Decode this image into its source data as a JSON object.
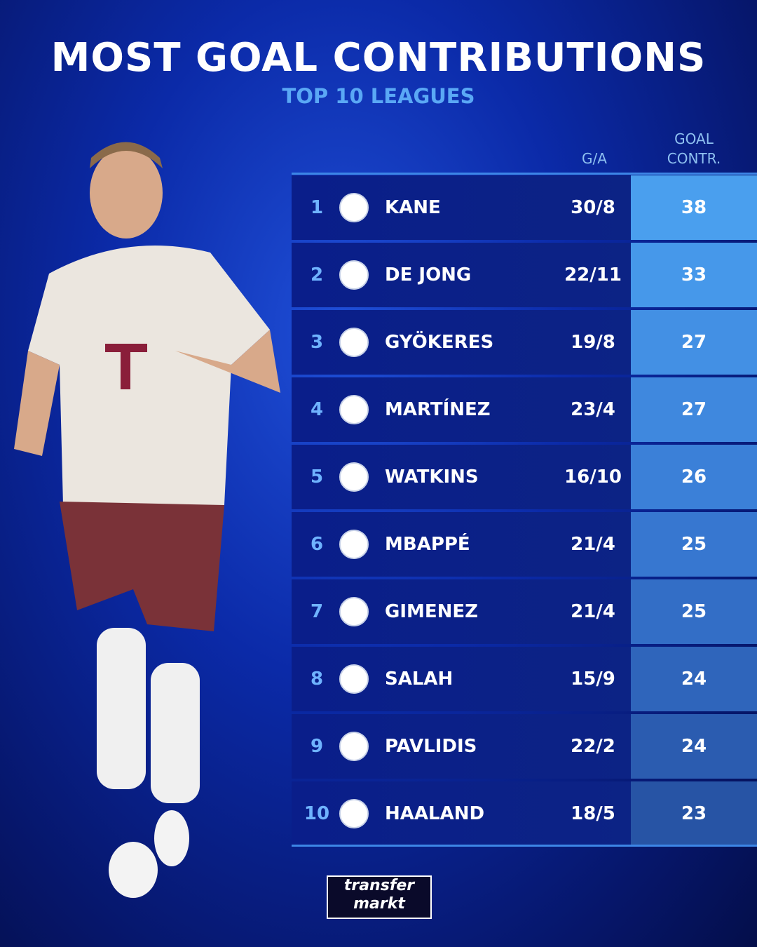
{
  "header": {
    "title": "MOST GOAL CONTRIBUTIONS",
    "subtitle": "TOP 10 LEAGUES"
  },
  "table": {
    "columns": [
      "G/A",
      "GOAL CONTR."
    ],
    "rows": [
      [
        1,
        "KANE",
        "30/8",
        38
      ],
      [
        2,
        "DE JONG",
        "22/11",
        33
      ],
      [
        3,
        "GYÖKERES",
        "19/8",
        27
      ],
      [
        4,
        "MARTÍNEZ",
        "23/4",
        27
      ],
      [
        5,
        "WATKINS",
        "16/10",
        26
      ],
      [
        6,
        "MBAPPÉ",
        "21/4",
        25
      ],
      [
        7,
        "GIMENEZ",
        "21/4",
        25
      ],
      [
        8,
        "SALAH",
        "15/9",
        24
      ],
      [
        9,
        "PAVLIDIS",
        "22/2",
        24
      ],
      [
        10,
        "HAALAND",
        "18/5",
        23
      ]
    ]
  },
  "footer": {
    "logo_top": "transfer",
    "logo_bottom": "markt"
  }
}
